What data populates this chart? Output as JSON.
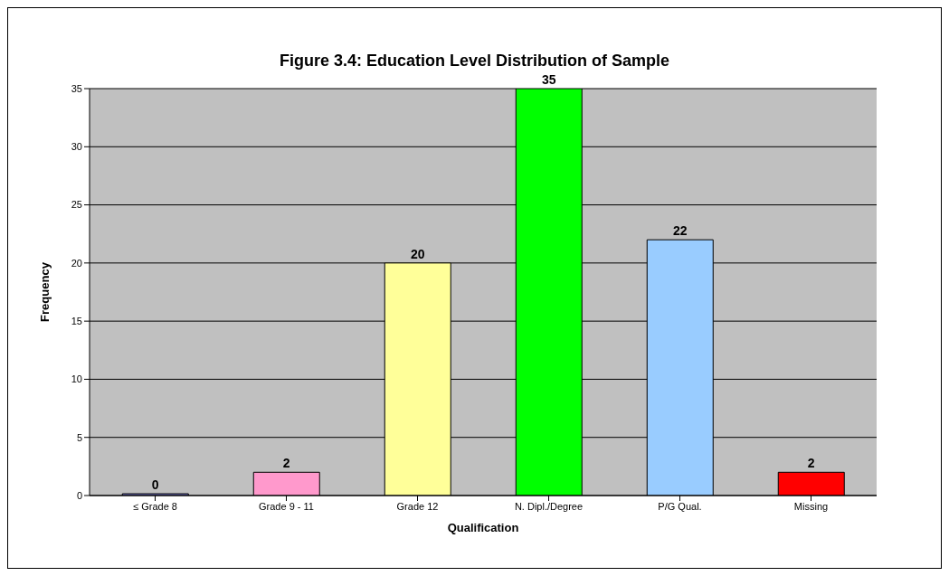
{
  "chart_data": {
    "type": "bar",
    "title": "Figure 3.4: Education Level Distribution of Sample",
    "xlabel": "Qualification",
    "ylabel": "Frequency",
    "categories": [
      "≤ Grade 8",
      "Grade 9 - 11",
      "Grade 12",
      "N. Dipl./Degree",
      "P/G Qual.",
      "Missing"
    ],
    "values": [
      0,
      2,
      20,
      35,
      22,
      2
    ],
    "colors": [
      "#8080e0",
      "#ff99cc",
      "#ffff99",
      "#00ff00",
      "#99ccff",
      "#ff0000"
    ],
    "ylim": [
      0,
      35
    ],
    "yticks": [
      0,
      5,
      10,
      15,
      20,
      25,
      30,
      35
    ],
    "grid": "y",
    "data_labels": true,
    "legend": false
  }
}
